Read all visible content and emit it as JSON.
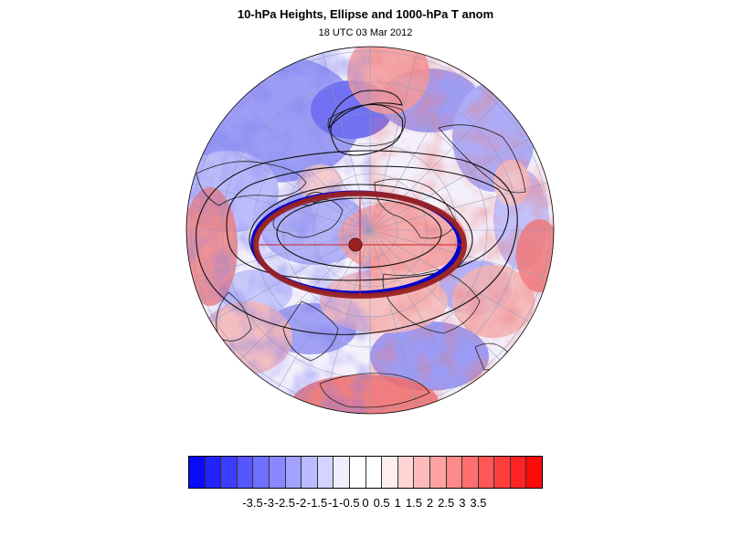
{
  "figure": {
    "title": "10-hPa Heights, Ellipse and 1000-hPa T anom",
    "subtitle": "18 UTC 03 Mar 2012"
  },
  "colors": {
    "ellipse_red": "#992222",
    "ellipse_blue": "#0000cc",
    "contour": "#111111",
    "coastline": "#222222",
    "grid": "#8899bb"
  },
  "colorbar": {
    "labels": [
      "-3.5",
      "-3",
      "-2.5",
      "-2",
      "-1.5",
      "-1",
      "-0.5",
      "0",
      "0.5",
      "1",
      "1.5",
      "2",
      "2.5",
      "3",
      "3.5"
    ],
    "colors": [
      "#0a0aff",
      "#2323ff",
      "#3d3dff",
      "#5656ff",
      "#6f6fff",
      "#8888ff",
      "#a2a2ff",
      "#bbbbff",
      "#d4d4ff",
      "#eeeeff",
      "#ffffff",
      "#ffffff",
      "#ffeeee",
      "#ffd4d4",
      "#ffbbbb",
      "#ffa2a2",
      "#ff8888",
      "#ff6f6f",
      "#ff5656",
      "#ff3d3d",
      "#ff2323",
      "#ff0a0a"
    ]
  }
}
